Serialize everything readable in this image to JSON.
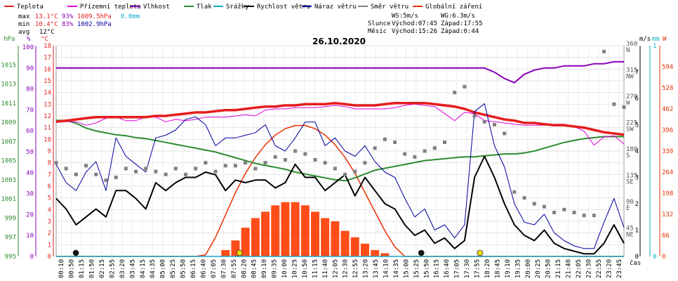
{
  "chart_data": {
    "type": "line",
    "title": "26.10.2020",
    "legend": [
      {
        "name": "Teplota",
        "color": "#e41e1e"
      },
      {
        "name": "Přízemní teplota",
        "color": "#e000e0"
      },
      {
        "name": "Vlhkost",
        "color": "#8b00b8"
      },
      {
        "name": "Tlak",
        "color": "#2e8b2e"
      },
      {
        "name": "Srážky",
        "color": "#10a8c8"
      },
      {
        "name": "Rychlost větru",
        "color": "#000000"
      },
      {
        "name": "Náraz větru",
        "color": "#0000a0"
      },
      {
        "name": "Směr větru",
        "color": "#808080"
      },
      {
        "name": "Globální záření",
        "color": "#e83000"
      }
    ],
    "stats": {
      "max": {
        "label": "max",
        "temp": "13.1°C",
        "hum": "93%",
        "press": "1009.5hPa",
        "rain": "0.0mm"
      },
      "min": {
        "label": "min",
        "temp": "10.4°C",
        "hum": "83%",
        "press": "1002.9hPa"
      },
      "avg": {
        "label": "avg",
        "temp": "12°C"
      }
    },
    "info": {
      "ws": "WS:5m/s",
      "wg": "WG:6.3m/s",
      "slunce": "Slunce",
      "slunce_vychod": "Východ:07:45",
      "slunce_zapad": "Západ:17:55",
      "mesic": "Měsíc",
      "mesic_vychod": "Východ:15:26",
      "mesic_zapad": "Západ:0:44"
    },
    "axes": {
      "hpa_unit": "hPa",
      "pct_unit": "%",
      "c_unit": "°C",
      "ms_unit": "m/s",
      "mm_unit": "mm",
      "w_unit": "W",
      "x_unit": "čas",
      "hpa_ticks": [
        "1015",
        "1013",
        "1011",
        "1009",
        "1007",
        "1005",
        "1003",
        "1001",
        "999",
        "997",
        "995"
      ],
      "pct_ticks": [
        "100",
        "90",
        "80",
        "70",
        "60",
        "50",
        "40",
        "30",
        "20",
        "10",
        "0"
      ],
      "c_ticks": [
        "18",
        "17",
        "16",
        "15",
        "14",
        "13",
        "12",
        "11",
        "10",
        "9",
        "8",
        "7",
        "6",
        "5",
        "4",
        "3",
        "2",
        "1",
        "0"
      ],
      "dir_ticks": [
        {
          "deg": "360",
          "dir": "N"
        },
        {
          "deg": "315",
          "dir": "NW"
        },
        {
          "deg": "270",
          "dir": "W"
        },
        {
          "deg": "225",
          "dir": "SW"
        },
        {
          "deg": "180",
          "dir": "S"
        },
        {
          "deg": "135",
          "dir": "SE"
        },
        {
          "deg": "90",
          "dir": "E"
        },
        {
          "deg": "45",
          "dir": "NE"
        }
      ],
      "ms_ticks": [
        "7",
        "6",
        "5",
        "4",
        "3",
        "2",
        "1",
        "0"
      ],
      "mm_ticks": [
        "1",
        "0"
      ],
      "w_ticks": [
        "594",
        "528",
        "462",
        "396",
        "330",
        "264",
        "198",
        "132",
        "66",
        "0"
      ],
      "time_labels": [
        "00:10",
        "00:50",
        "01:15",
        "01:50",
        "02:15",
        "02:55",
        "03:20",
        "03:45",
        "04:15",
        "04:35",
        "05:00",
        "05:25",
        "05:50",
        "06:15",
        "06:40",
        "07:05",
        "07:30",
        "07:55",
        "08:20",
        "08:45",
        "09:10",
        "09:35",
        "10:00",
        "10:25",
        "10:50",
        "11:15",
        "11:40",
        "12:05",
        "12:30",
        "12:55",
        "13:20",
        "13:45",
        "14:10",
        "14:35",
        "15:00",
        "15:25",
        "15:50",
        "16:15",
        "16:40",
        "17:05",
        "17:30",
        "17:55",
        "18:20",
        "18:45",
        "19:10",
        "19:35",
        "20:00",
        "20:25",
        "20:50",
        "21:15",
        "21:40",
        "22:05",
        "22:30",
        "22:55",
        "23:20",
        "23:45"
      ]
    },
    "series": {
      "temperature_c": [
        11.5,
        11.6,
        11.7,
        11.8,
        11.9,
        11.9,
        11.9,
        11.9,
        11.9,
        11.9,
        12,
        12,
        12.1,
        12.2,
        12.3,
        12.3,
        12.4,
        12.5,
        12.5,
        12.6,
        12.7,
        12.8,
        12.8,
        12.9,
        12.9,
        13,
        13,
        13,
        13.1,
        13,
        12.9,
        12.9,
        12.9,
        13,
        13.1,
        13.1,
        13.1,
        13.1,
        13,
        12.9,
        12.8,
        12.6,
        12.3,
        12.1,
        11.9,
        11.7,
        11.6,
        11.4,
        11.4,
        11.3,
        11.2,
        11.2,
        11.1,
        11,
        10.8,
        10.6,
        10.5,
        10.4
      ],
      "ground_temp_c": [
        11.5,
        11.5,
        11.5,
        11.2,
        11.4,
        11.8,
        11.9,
        11.6,
        11.6,
        11.9,
        11.9,
        11.5,
        11.7,
        11.6,
        11.7,
        11.9,
        11.9,
        11.9,
        12,
        12.1,
        12,
        12.5,
        12.6,
        12.6,
        12.7,
        12.7,
        12.7,
        12.8,
        12.9,
        12.8,
        12.6,
        12.6,
        12.6,
        12.6,
        12.7,
        12.9,
        13,
        12.9,
        12.8,
        12.2,
        11.6,
        12.3,
        12.2,
        11.6,
        11.5,
        11.4,
        11.3,
        11.2,
        11.2,
        11.2,
        11.3,
        11.3,
        11.1,
        10.7,
        9.5,
        10.2,
        10.3,
        9.6
      ],
      "humidity_pct": [
        90,
        90,
        90,
        90,
        90,
        90,
        90,
        90,
        90,
        90,
        90,
        90,
        90,
        90,
        90,
        90,
        90,
        90,
        90,
        90,
        90,
        90,
        90,
        90,
        90,
        90,
        90,
        90,
        90,
        90,
        90,
        90,
        90,
        90,
        90,
        90,
        90,
        90,
        90,
        90,
        90,
        90,
        90,
        90,
        88,
        85,
        83,
        87,
        89,
        90,
        90,
        91,
        91,
        91,
        92,
        92,
        93,
        93
      ],
      "pressure_hpa": [
        1009.2,
        1009.2,
        1008.9,
        1008.4,
        1008.1,
        1007.9,
        1007.7,
        1007.6,
        1007.4,
        1007.3,
        1007.1,
        1006.9,
        1006.7,
        1006.5,
        1006.3,
        1006.1,
        1005.9,
        1005.6,
        1005.3,
        1005,
        1004.7,
        1004.5,
        1004.3,
        1004.1,
        1003.8,
        1003.6,
        1003.4,
        1003.2,
        1003,
        1002.9,
        1003.2,
        1003.6,
        1004,
        1004.2,
        1004.4,
        1004.6,
        1004.8,
        1005,
        1005.1,
        1005.2,
        1005.3,
        1005.4,
        1005.4,
        1005.5,
        1005.6,
        1005.7,
        1005.7,
        1005.8,
        1006,
        1006.3,
        1006.6,
        1006.9,
        1007.1,
        1007.3,
        1007.4,
        1007.5,
        1007.5,
        1007.5
      ],
      "wind_speed_ms": [
        2.2,
        1.8,
        1.2,
        1.5,
        1.8,
        1.5,
        2.5,
        2.5,
        2.2,
        1.8,
        2.8,
        2.5,
        2.8,
        3,
        3,
        3.2,
        3.1,
        2.5,
        2.9,
        2.8,
        2.9,
        2.9,
        2.6,
        2.8,
        3.5,
        3,
        3,
        2.5,
        2.8,
        3.1,
        2.3,
        3,
        2.5,
        2,
        1.8,
        1.2,
        0.8,
        1,
        0.5,
        0.7,
        0.3,
        0.6,
        3,
        3.8,
        3,
        2,
        1.2,
        0.8,
        0.6,
        1,
        0.5,
        0.3,
        0.2,
        0.1,
        0.1,
        0.5,
        1.2,
        0.5
      ],
      "wind_gust_ms": [
        3.5,
        2.8,
        2.5,
        3.2,
        3.6,
        2.5,
        4.5,
        3.8,
        3.5,
        3.2,
        4.5,
        4.6,
        4.8,
        5.2,
        5.3,
        5,
        4.2,
        4.5,
        4.5,
        4.6,
        4.7,
        5,
        4.2,
        4,
        4.5,
        5.1,
        5.1,
        4.2,
        4.5,
        4,
        3.8,
        4.2,
        3.6,
        3.2,
        3,
        2.2,
        1.5,
        1.8,
        1,
        1.2,
        0.7,
        1.2,
        5.5,
        5.8,
        4.2,
        3.4,
        2,
        1.3,
        1.2,
        1.6,
        0.9,
        0.6,
        0.4,
        0.3,
        0.3,
        1.3,
        2.2,
        1.1
      ],
      "wind_dir_deg": [
        160,
        150,
        140,
        155,
        140,
        130,
        135,
        150,
        145,
        150,
        145,
        140,
        150,
        140,
        150,
        160,
        145,
        155,
        155,
        160,
        150,
        160,
        170,
        165,
        180,
        175,
        165,
        160,
        150,
        140,
        145,
        160,
        185,
        200,
        195,
        175,
        170,
        180,
        185,
        195,
        280,
        290,
        240,
        230,
        225,
        210,
        110,
        100,
        90,
        85,
        75,
        80,
        75,
        70,
        70,
        350,
        260,
        255
      ],
      "solar_wm2": [
        0,
        0,
        0,
        0,
        0,
        0,
        0,
        0,
        0,
        0,
        0,
        0,
        0,
        0,
        0,
        0,
        0,
        20,
        50,
        90,
        120,
        140,
        160,
        170,
        170,
        160,
        140,
        120,
        110,
        80,
        60,
        40,
        20,
        10,
        0,
        0,
        0,
        0,
        0,
        0,
        0,
        0,
        0,
        0,
        0,
        0,
        0,
        0,
        0,
        0,
        0,
        0,
        0,
        0,
        0,
        0,
        0,
        0
      ],
      "sun_curve_wm2": [
        0,
        0,
        0,
        0,
        0,
        0,
        0,
        0,
        0,
        0,
        0,
        0,
        0,
        0,
        0,
        5,
        60,
        130,
        200,
        260,
        310,
        350,
        380,
        400,
        410,
        410,
        400,
        380,
        350,
        310,
        260,
        200,
        140,
        80,
        30,
        0,
        0,
        0,
        0,
        0,
        0,
        0,
        0,
        0,
        0,
        0,
        0,
        0,
        0,
        0,
        0,
        0,
        0,
        0,
        0,
        0,
        0,
        0
      ],
      "rain_mm": [
        0,
        0,
        0,
        0,
        0,
        0,
        0,
        0,
        0,
        0,
        0,
        0,
        0,
        0,
        0,
        0,
        0,
        0,
        0,
        0,
        0,
        0,
        0,
        0,
        0,
        0,
        0,
        0,
        0,
        0,
        0,
        0,
        0,
        0,
        0,
        0,
        0,
        0,
        0,
        0,
        0,
        0,
        0,
        0,
        0,
        0,
        0,
        0,
        0,
        0,
        0,
        0,
        0,
        0,
        0,
        0,
        0,
        0
      ]
    },
    "markers": [
      {
        "time": "00:50",
        "type": "moon-set",
        "color": "#111111"
      },
      {
        "time": "07:45",
        "type": "sun-rise",
        "color": "#f0e000"
      },
      {
        "time": "15:26",
        "type": "moon-rise",
        "color": "#111111"
      },
      {
        "time": "17:55",
        "type": "sun-set",
        "color": "#f0e000"
      }
    ]
  }
}
